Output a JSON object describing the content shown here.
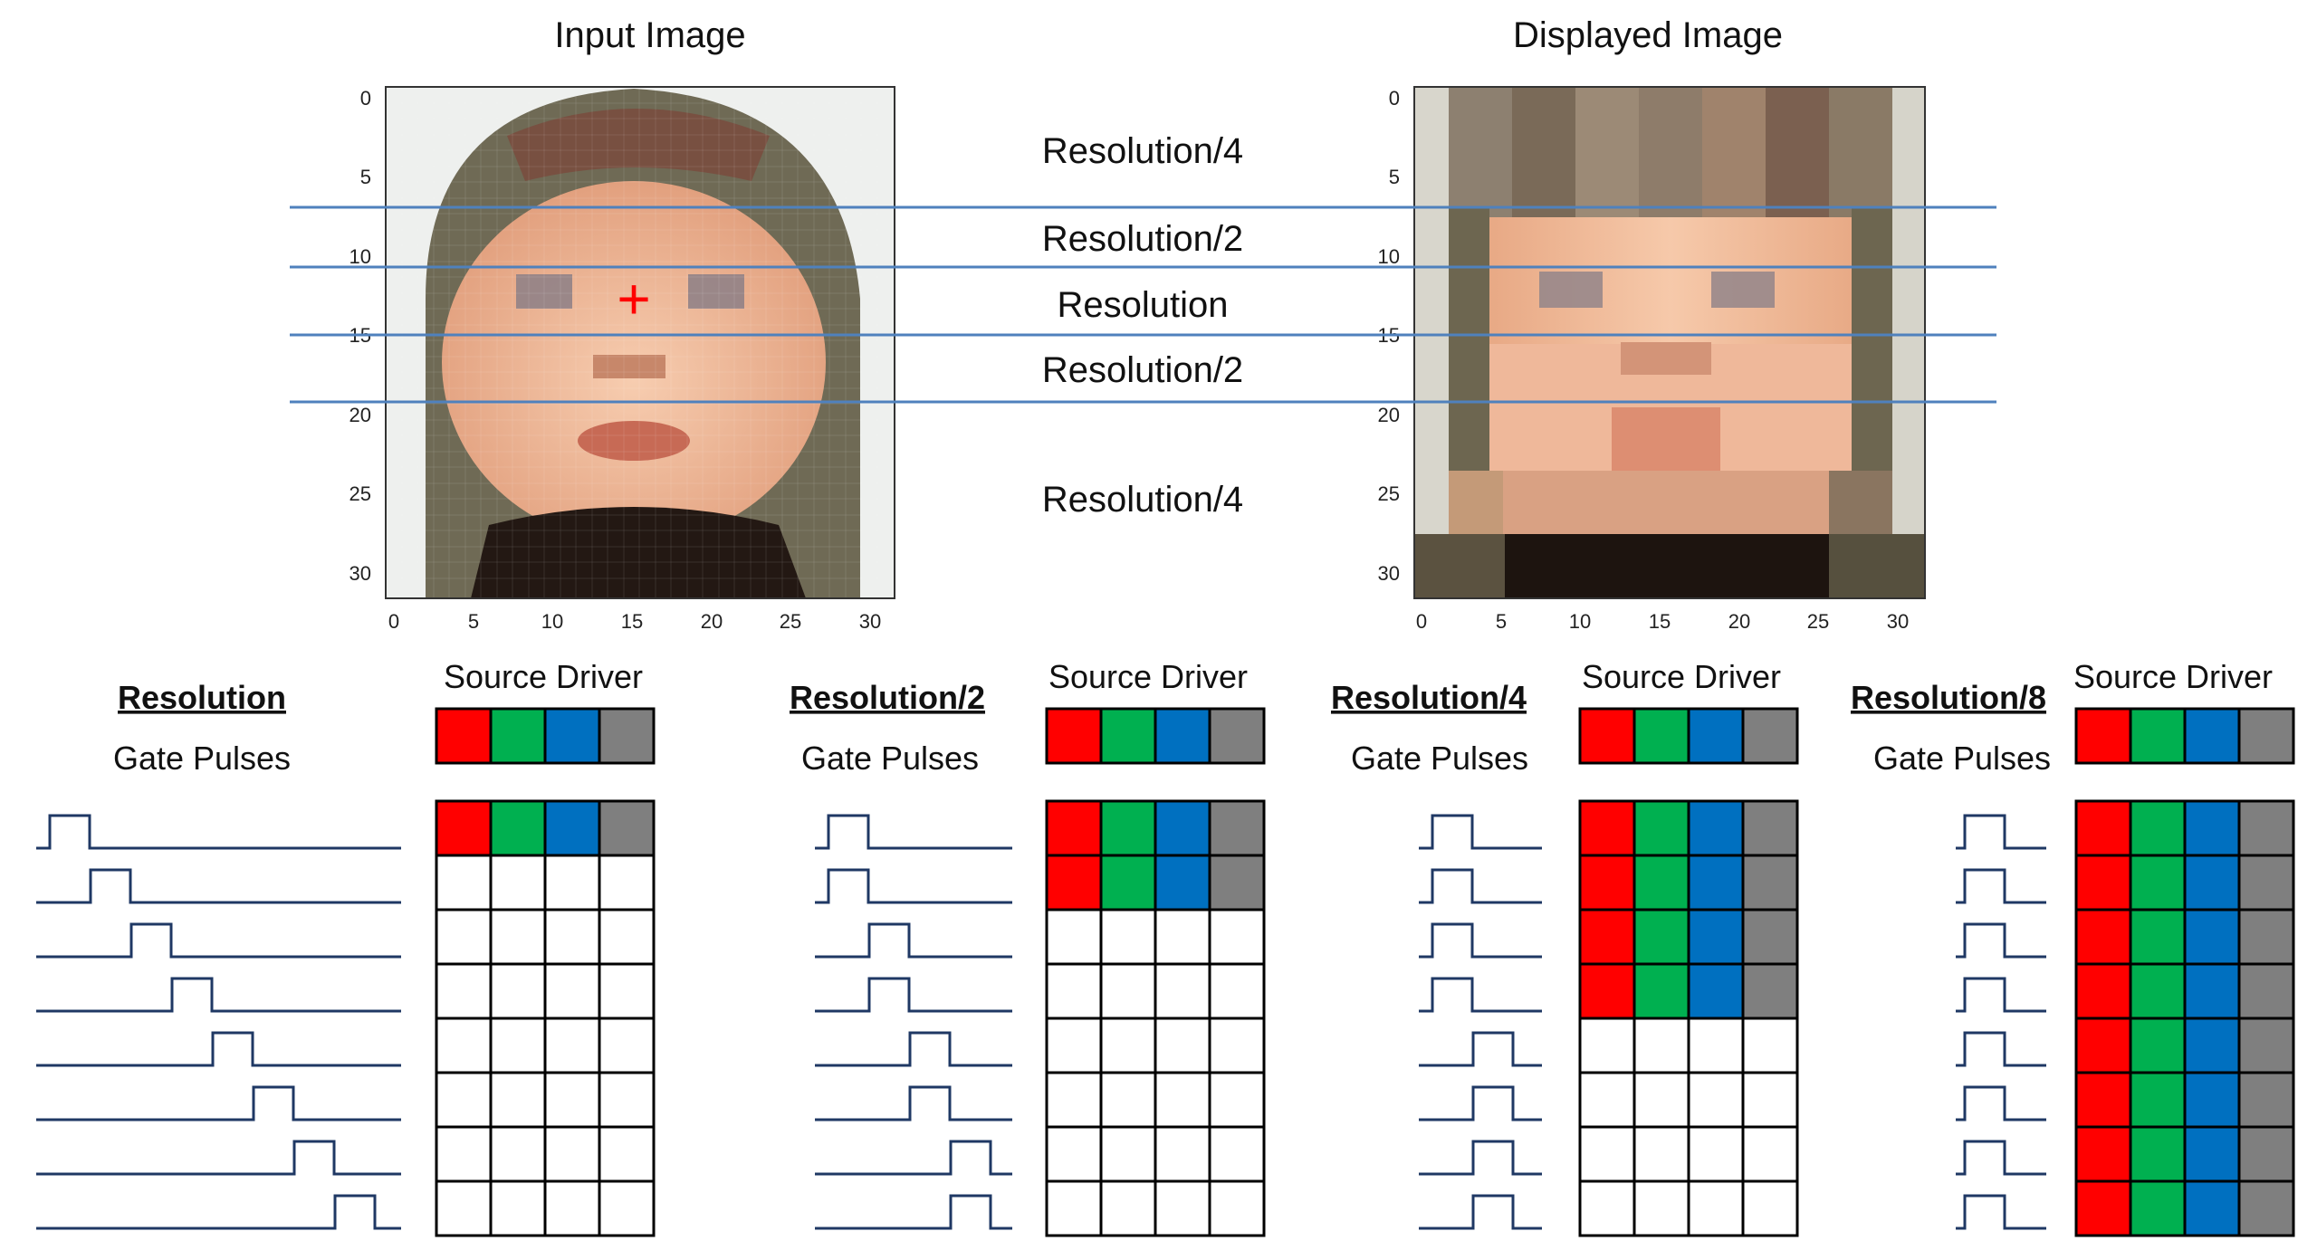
{
  "titles": {
    "input": "Input Image",
    "displayed": "Displayed Image"
  },
  "bands": [
    "Resolution/4",
    "Resolution/2",
    "Resolution",
    "Resolution/2",
    "Resolution/4"
  ],
  "axis_ticks": [
    "0",
    "5",
    "10",
    "15",
    "20",
    "25",
    "30"
  ],
  "cross_marker": "+",
  "colors": {
    "red": "#ff0000",
    "green": "#00b050",
    "blue": "#0070c0",
    "gray": "#7f7f7f",
    "band_line": "#4f81bd",
    "pulse": "#1f3864",
    "marker": "#ff0000"
  },
  "panels": [
    {
      "heading": "Resolution",
      "gate_label": "Gate Pulses",
      "source_label": "Source Driver",
      "lit_rows": 1,
      "pulse_positions": [
        0,
        1,
        2,
        3,
        4,
        5,
        6,
        7
      ]
    },
    {
      "heading": "Resolution/2",
      "gate_label": "Gate Pulses",
      "source_label": "Source Driver",
      "lit_rows": 2,
      "pulse_positions": [
        0,
        0,
        1,
        1,
        2,
        2,
        3,
        3
      ]
    },
    {
      "heading": "Resolution/4",
      "gate_label": "Gate Pulses",
      "source_label": "Source Driver",
      "lit_rows": 4,
      "pulse_positions": [
        0,
        0,
        0,
        0,
        1,
        1,
        1,
        1
      ]
    },
    {
      "heading": "Resolution/8",
      "gate_label": "Gate Pulses",
      "source_label": "Source Driver",
      "lit_rows": 8,
      "pulse_positions": [
        0,
        0,
        0,
        0,
        0,
        0,
        0,
        0
      ]
    }
  ]
}
